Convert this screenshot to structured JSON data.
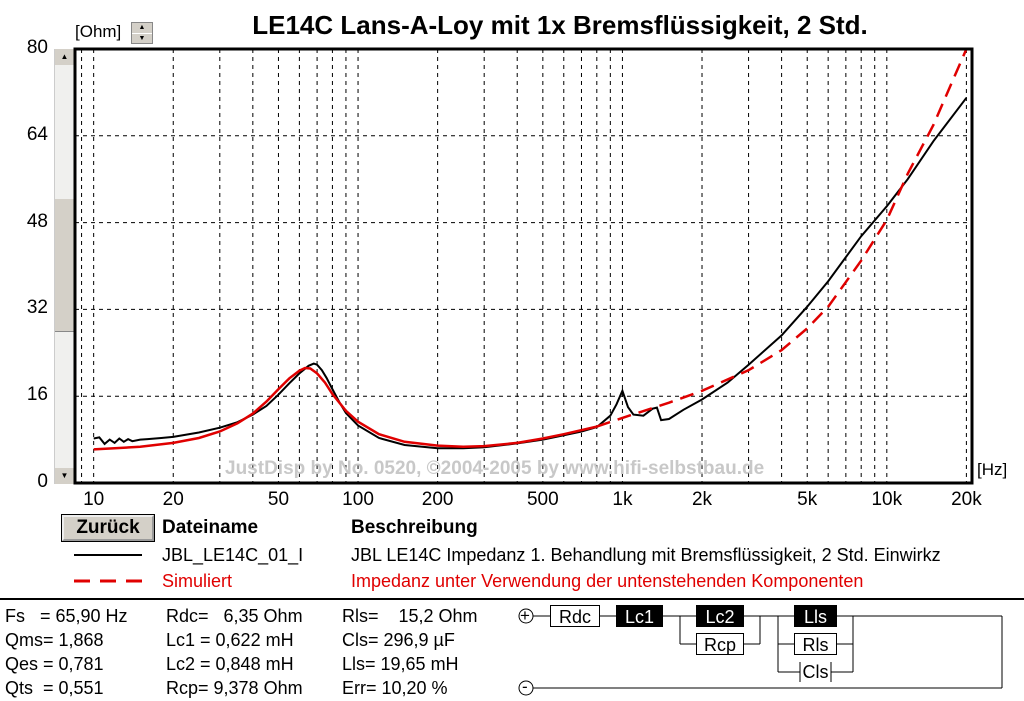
{
  "chart_data": {
    "type": "line",
    "title": "LE14C Lans-A-Loy mit 1x Bremsflüssigkeit, 2 Std.",
    "xlabel": "[Hz]",
    "ylabel": "[Ohm]",
    "xscale": "log",
    "xlim": [
      8.5,
      21000
    ],
    "ylim": [
      0,
      80
    ],
    "grid": true,
    "x_ticks": [
      {
        "v": 10,
        "label": "10"
      },
      {
        "v": 20,
        "label": "20"
      },
      {
        "v": 50,
        "label": "50"
      },
      {
        "v": 100,
        "label": "100"
      },
      {
        "v": 200,
        "label": "200"
      },
      {
        "v": 500,
        "label": "500"
      },
      {
        "v": 1000,
        "label": "1k"
      },
      {
        "v": 2000,
        "label": "2k"
      },
      {
        "v": 5000,
        "label": "5k"
      },
      {
        "v": 10000,
        "label": "10k"
      },
      {
        "v": 20000,
        "label": "20k"
      }
    ],
    "y_ticks": [
      0,
      16,
      32,
      48,
      64,
      80
    ],
    "watermark": "JustDisp by No. 0520, ©2004-2005 by www.hifi-selbstbau.de",
    "series": [
      {
        "name": "JBL_LE14C_01_I",
        "color": "#000000",
        "dash": "solid",
        "x": [
          10,
          10.5,
          11,
          11.5,
          12,
          12.5,
          13,
          13.5,
          14,
          15,
          16,
          18,
          20,
          25,
          30,
          35,
          40,
          45,
          50,
          55,
          60,
          65,
          68,
          70,
          73,
          76,
          80,
          85,
          90,
          100,
          120,
          150,
          200,
          250,
          300,
          400,
          500,
          600,
          700,
          800,
          900,
          950,
          1000,
          1050,
          1100,
          1200,
          1300,
          1350,
          1400,
          1500,
          1700,
          2000,
          2500,
          3000,
          4000,
          5000,
          6000,
          8000,
          10000,
          12000,
          15000,
          20000
        ],
        "y": [
          8.2,
          8.4,
          7.2,
          8.0,
          7.4,
          8.2,
          7.6,
          8.1,
          7.7,
          8.0,
          8.1,
          8.3,
          8.5,
          9.3,
          10.2,
          11.2,
          12.6,
          14.2,
          16.3,
          18.4,
          20.2,
          21.6,
          22.0,
          21.8,
          20.8,
          19.4,
          17.3,
          14.9,
          12.9,
          10.6,
          8.3,
          7.0,
          6.4,
          6.4,
          6.6,
          7.3,
          8.0,
          8.8,
          9.5,
          10.3,
          12.4,
          14.5,
          17.0,
          14.0,
          12.6,
          12.4,
          13.7,
          13.9,
          11.6,
          11.8,
          13.5,
          15.4,
          18.5,
          21.8,
          27.2,
          32.5,
          37.2,
          45.5,
          51.0,
          56.0,
          63.0,
          71.0
        ]
      },
      {
        "name": "Simuliert",
        "color": "#e00000",
        "dash": "solid-then-dashed",
        "x": [
          10,
          12,
          15,
          20,
          25,
          30,
          35,
          40,
          45,
          50,
          55,
          60,
          63,
          66,
          70,
          75,
          80,
          90,
          100,
          120,
          150,
          200,
          250,
          300,
          400,
          500,
          600,
          800,
          1000,
          1500,
          2000,
          3000,
          4000,
          5000,
          6000,
          8000,
          10000,
          12000,
          15000,
          20000
        ],
        "y": [
          6.2,
          6.4,
          6.7,
          7.4,
          8.3,
          9.5,
          11.0,
          12.8,
          15.0,
          17.3,
          19.3,
          20.7,
          21.2,
          21.1,
          20.2,
          18.5,
          16.4,
          13.3,
          11.3,
          9.0,
          7.6,
          6.9,
          6.7,
          6.8,
          7.4,
          8.2,
          9.0,
          10.4,
          12.0,
          14.8,
          17.0,
          20.8,
          24.5,
          28.5,
          32.5,
          41.0,
          48.5,
          57.0,
          66.0,
          80.0
        ]
      }
    ]
  },
  "axis": {
    "y_unit": "[Ohm]",
    "x_unit": "[Hz]"
  },
  "controls": {
    "back_button": "Zurück",
    "spin_up": "▲",
    "spin_down": "▼",
    "scroll_up": "▲",
    "scroll_down": "▼"
  },
  "legend": {
    "header_file": "Dateiname",
    "header_desc": "Beschreibung",
    "rows": [
      {
        "file": "JBL_LE14C_01_I",
        "desc": "JBL LE14C Impedanz 1. Behandlung mit Bremsflüssigkeit, 2 Std. Einwirkz"
      },
      {
        "file": "Simuliert",
        "desc": "Impedanz unter Verwendung der untenstehenden Komponenten"
      }
    ]
  },
  "params": {
    "col1": [
      "Fs   = 65,90 Hz",
      "Qms= 1,868",
      "Qes = 0,781",
      "Qts  = 0,551"
    ],
    "col2": [
      "Rdc=   6,35 Ohm",
      "Lc1 = 0,622 mH",
      "Lc2 = 0,848 mH",
      "Rcp= 9,378 Ohm"
    ],
    "col3": [
      "Rls=    15,2 Ohm",
      "Cls= 296,9 µF",
      "Lls= 19,65 mH",
      "Err= 10,20 %"
    ]
  },
  "circuit": {
    "plus": "+",
    "minus": "-",
    "rdc": "Rdc",
    "lc1": "Lc1",
    "lc2": "Lc2",
    "rcp": "Rcp",
    "lls": "Lls",
    "rls": "Rls",
    "cls": "Cls"
  }
}
